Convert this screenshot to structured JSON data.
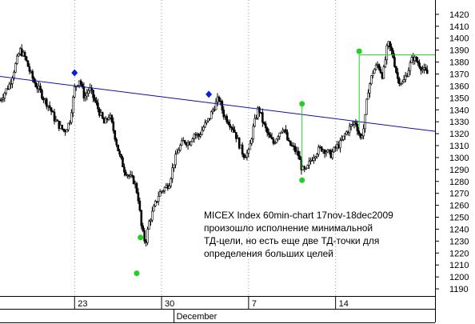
{
  "chart_data": {
    "type": "candlestick",
    "title": "",
    "xlabel": "",
    "ylabel": "",
    "ylim": [
      1184,
      1432
    ],
    "y_ticks": [
      1190,
      1200,
      1210,
      1220,
      1230,
      1240,
      1250,
      1260,
      1270,
      1280,
      1290,
      1300,
      1310,
      1320,
      1330,
      1340,
      1350,
      1360,
      1370,
      1380,
      1390,
      1400,
      1410,
      1420
    ],
    "x_ticks": [
      {
        "label": "23",
        "day": 23
      },
      {
        "label": "30",
        "day": 30
      },
      {
        "label": "7",
        "day": 37
      },
      {
        "label": "14",
        "day": 44
      }
    ],
    "month_label": "December",
    "month_start_day": 31,
    "xlim_day": [
      17,
      52
    ],
    "grid": "vertical-dotted",
    "price_path": [
      [
        17.0,
        1348
      ],
      [
        17.4,
        1355
      ],
      [
        17.8,
        1362
      ],
      [
        18.2,
        1376
      ],
      [
        18.6,
        1390
      ],
      [
        19.0,
        1384
      ],
      [
        19.4,
        1372
      ],
      [
        19.8,
        1362
      ],
      [
        20.2,
        1356
      ],
      [
        20.6,
        1348
      ],
      [
        21.0,
        1342
      ],
      [
        21.4,
        1332
      ],
      [
        21.8,
        1326
      ],
      [
        22.2,
        1322
      ],
      [
        22.6,
        1330
      ],
      [
        23.0,
        1358
      ],
      [
        23.4,
        1366
      ],
      [
        23.8,
        1350
      ],
      [
        24.2,
        1358
      ],
      [
        24.6,
        1348
      ],
      [
        25.0,
        1338
      ],
      [
        25.4,
        1328
      ],
      [
        25.8,
        1336
      ],
      [
        26.2,
        1320
      ],
      [
        26.6,
        1302
      ],
      [
        27.0,
        1290
      ],
      [
        27.4,
        1284
      ],
      [
        27.8,
        1280
      ],
      [
        28.1,
        1268
      ],
      [
        28.4,
        1240
      ],
      [
        28.7,
        1228
      ],
      [
        29.0,
        1246
      ],
      [
        29.4,
        1258
      ],
      [
        29.8,
        1270
      ],
      [
        30.2,
        1274
      ],
      [
        30.6,
        1278
      ],
      [
        31.0,
        1296
      ],
      [
        31.4,
        1308
      ],
      [
        31.8,
        1314
      ],
      [
        32.2,
        1312
      ],
      [
        32.6,
        1320
      ],
      [
        33.0,
        1318
      ],
      [
        33.4,
        1326
      ],
      [
        33.8,
        1332
      ],
      [
        34.2,
        1342
      ],
      [
        34.6,
        1350
      ],
      [
        35.0,
        1336
      ],
      [
        35.4,
        1330
      ],
      [
        35.8,
        1324
      ],
      [
        36.2,
        1312
      ],
      [
        36.6,
        1302
      ],
      [
        37.0,
        1304
      ],
      [
        37.4,
        1326
      ],
      [
        37.8,
        1342
      ],
      [
        38.2,
        1328
      ],
      [
        38.6,
        1318
      ],
      [
        39.0,
        1312
      ],
      [
        39.4,
        1320
      ],
      [
        39.8,
        1326
      ],
      [
        40.2,
        1312
      ],
      [
        40.6,
        1308
      ],
      [
        41.0,
        1302
      ],
      [
        41.3,
        1290
      ],
      [
        41.6,
        1288
      ],
      [
        42.0,
        1298
      ],
      [
        42.4,
        1304
      ],
      [
        42.8,
        1308
      ],
      [
        43.2,
        1306
      ],
      [
        43.6,
        1302
      ],
      [
        44.0,
        1308
      ],
      [
        44.4,
        1312
      ],
      [
        44.8,
        1320
      ],
      [
        45.2,
        1326
      ],
      [
        45.6,
        1330
      ],
      [
        46.0,
        1316
      ],
      [
        46.3,
        1326
      ],
      [
        46.6,
        1356
      ],
      [
        47.0,
        1372
      ],
      [
        47.4,
        1378
      ],
      [
        47.8,
        1368
      ],
      [
        48.2,
        1396
      ],
      [
        48.6,
        1386
      ],
      [
        49.0,
        1366
      ],
      [
        49.4,
        1362
      ],
      [
        49.8,
        1372
      ],
      [
        50.2,
        1384
      ],
      [
        50.6,
        1380
      ],
      [
        51.0,
        1374
      ],
      [
        51.4,
        1370
      ]
    ],
    "trend_line": {
      "from": [
        17,
        1368
      ],
      "to": [
        52,
        1322
      ],
      "color": "#1010a0"
    },
    "td_points_high": [
      [
        23.0,
        1371
      ],
      [
        33.8,
        1353
      ]
    ],
    "td_points_low": [
      [
        28.0,
        1203
      ],
      [
        28.3,
        1233
      ],
      [
        41.3,
        1281
      ],
      [
        41.3,
        1345
      ],
      [
        45.9,
        1389
      ]
    ],
    "targets": [
      {
        "day_from": 41.3,
        "day_to": 41.3,
        "y_from": 1345,
        "y_to": 1290
      },
      {
        "day_from": 45.9,
        "day_to": 52,
        "y_from": 1386,
        "y_to": 1386
      },
      {
        "day_from": 45.9,
        "day_to": 45.9,
        "y_from": 1386,
        "y_to": 1326
      }
    ],
    "annotation": [
      "MICEX Index 60min-chart 17nov-18dec2009",
      "произошло исполнение минимальной",
      "ТД-цели, но есть еще две ТД-точки для",
      "определения больших целей"
    ],
    "colors": {
      "candles": "#000000",
      "trend_line": "#1010a0",
      "high_points": "#0a1fd8",
      "low_points": "#22d022",
      "target_lines": "#22d022",
      "grid": "#999999"
    }
  }
}
